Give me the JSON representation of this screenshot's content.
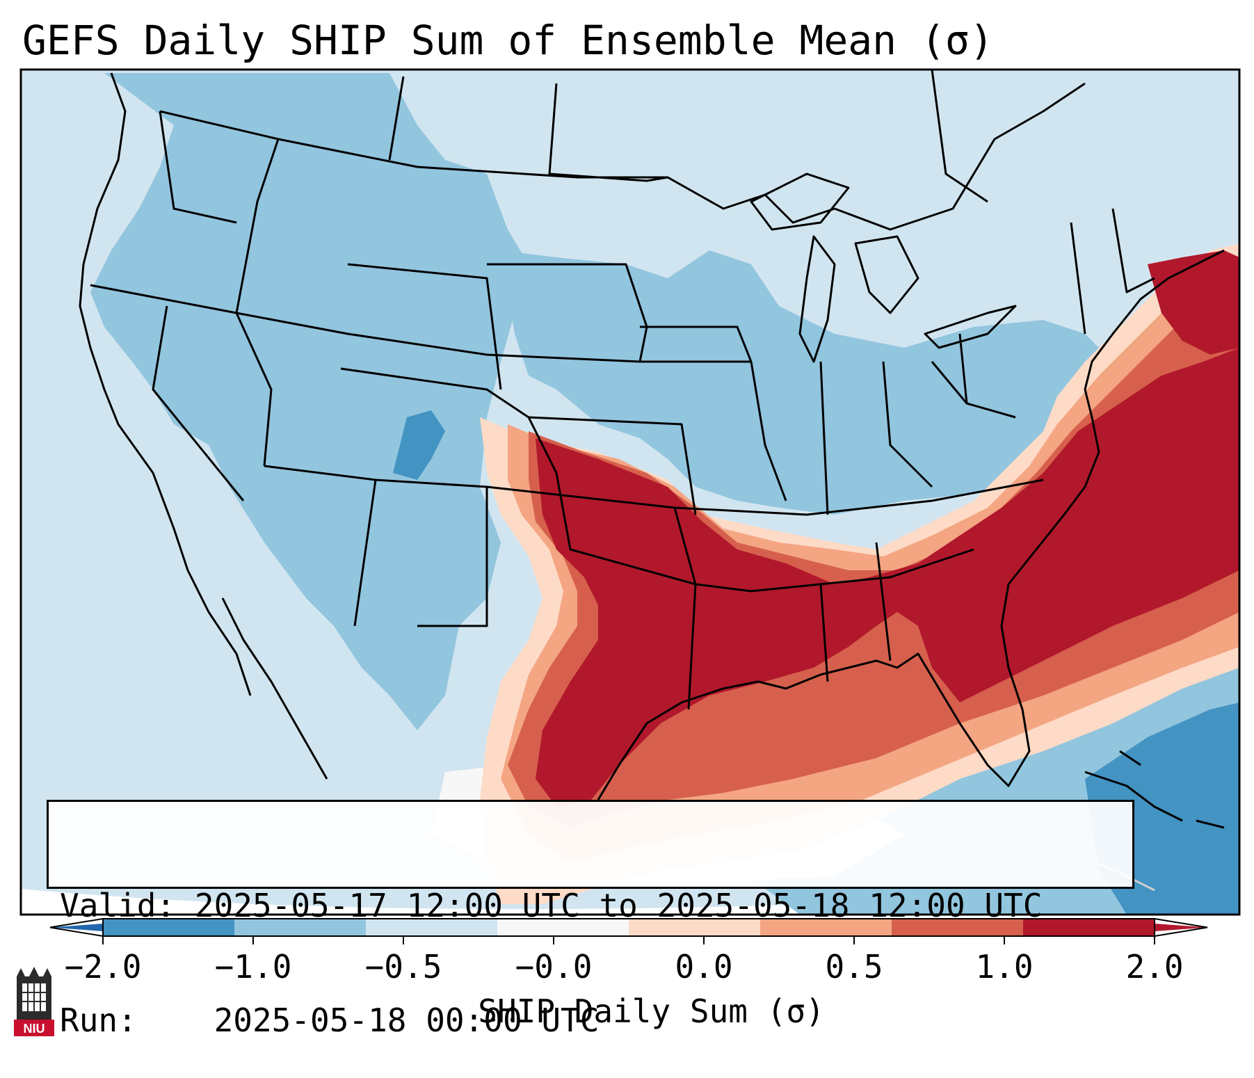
{
  "title": "GEFS Daily SHIP Sum of Ensemble Mean (σ)",
  "info": {
    "valid_label": "Valid:",
    "valid_value": "2025-05-17 12:00 UTC to 2025-05-18 12:00 UTC",
    "run_label": "Run:",
    "run_value": "2025-05-18 00:00 UTC"
  },
  "colorbar": {
    "label": "SHIP Daily Sum (σ)",
    "ticks": [
      "−2.0",
      "−1.0",
      "−0.5",
      "−0.0",
      "0.0",
      "0.5",
      "1.0",
      "2.0"
    ],
    "colors": [
      "#4393c3",
      "#92c5de",
      "#d1e5f0",
      "#f7f7f7",
      "#fddbc7",
      "#f4a582",
      "#d6604d",
      "#b2182b"
    ],
    "under_color": "#2166ac",
    "over_color": "#b2182b"
  },
  "logo": {
    "text": "NIU",
    "color": "#c8102e"
  },
  "map_colors": {
    "background": "#d1e5f0",
    "light_blue": "#92c5de",
    "mid_blue": "#4393c3",
    "white": "#f7f7f7",
    "peach": "#fddbc7",
    "salmon": "#f4a582",
    "red": "#d6604d",
    "dark_red": "#b2182b"
  }
}
